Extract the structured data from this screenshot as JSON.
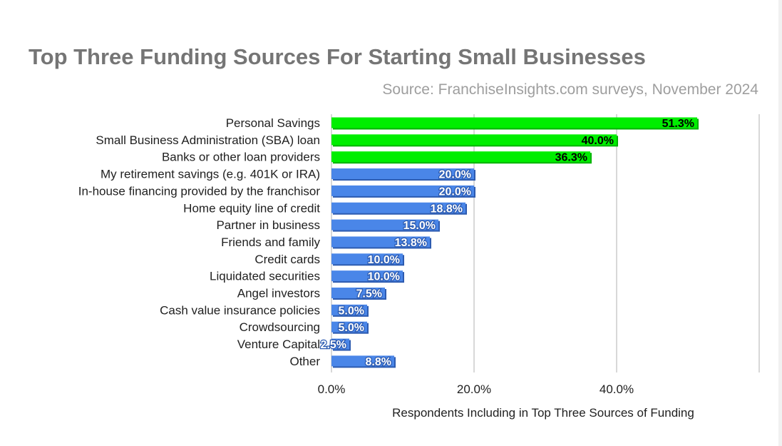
{
  "chart_data": {
    "type": "bar",
    "orientation": "horizontal",
    "title": "Top Three Funding Sources For Starting Small Businesses",
    "subtitle": "Source: FranchiseInsights.com surveys, November 2024",
    "xlabel": "Respondents Including in Top Three Sources of Funding",
    "ylabel": "",
    "xlim": [
      0,
      60
    ],
    "x_ticks": [
      "0.0%",
      "20.0%",
      "40.0%"
    ],
    "grid": true,
    "legend": "none",
    "categories": [
      "Personal Savings",
      "Small Business Administration (SBA) loan",
      "Banks or other loan providers",
      "My retirement savings (e.g. 401K or IRA)",
      "In-house financing provided by the franchisor",
      "Home equity line of credit",
      "Partner in business",
      "Friends and family",
      "Credit cards",
      "Liquidated securities",
      "Angel investors",
      "Cash value insurance policies",
      "Crowdsourcing",
      "Venture Capital",
      "Other"
    ],
    "values": [
      51.3,
      40.0,
      36.3,
      20.0,
      20.0,
      18.8,
      15.0,
      13.8,
      10.0,
      10.0,
      7.5,
      5.0,
      5.0,
      2.5,
      8.8
    ],
    "data_labels": [
      "51.3%",
      "40.0%",
      "36.3%",
      "20.0%",
      "20.0%",
      "18.8%",
      "15.0%",
      "13.8%",
      "10.0%",
      "10.0%",
      "7.5%",
      "5.0%",
      "5.0%",
      "2.5%",
      "8.8%"
    ],
    "highlight_count": 3,
    "colors": {
      "highlight": "#00ee00",
      "highlight_shadow": "#00b300",
      "default": "#4a86e8",
      "default_shadow": "#2d5bb0",
      "title": "#757575",
      "subtitle": "#9e9e9e",
      "gridline": "#cccccc",
      "highlight_label": "#000000",
      "default_label": "#ffffff"
    }
  }
}
